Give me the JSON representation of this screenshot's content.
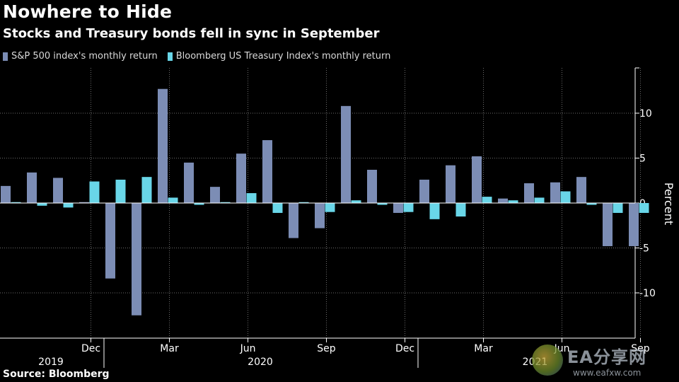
{
  "header": {
    "title": "Nowhere to Hide",
    "subtitle": "Stocks and Treasury bonds fell in sync in September"
  },
  "legend": {
    "sp500": "S&P 500 index's monthly return",
    "treasury": "Bloomberg US Treasury Index's monthly return"
  },
  "colors": {
    "sp500": "#7c8db5",
    "treasury": "#69d6e8",
    "grid": "#6b6b6b",
    "axis": "#ffffff"
  },
  "footer": {
    "source": "Source: Bloomberg"
  },
  "watermark": {
    "main": "EA分享网",
    "sub": "www.eafxw.com"
  },
  "chart_data": {
    "type": "bar",
    "title": "Nowhere to Hide",
    "subtitle": "Stocks and Treasury bonds fell in sync in September",
    "ylabel": "Percent",
    "ylim": [
      -14.5,
      15
    ],
    "y_ticks": [
      10,
      5,
      0,
      -5,
      -10
    ],
    "y_tick_labels": [
      "10",
      "5",
      "0",
      "-5",
      "-10"
    ],
    "grid": true,
    "legend_position": "top-left",
    "categories": [
      "2019-09",
      "2019-10",
      "2019-11",
      "2019-12",
      "2020-01",
      "2020-02",
      "2020-03",
      "2020-04",
      "2020-05",
      "2020-06",
      "2020-07",
      "2020-08",
      "2020-09",
      "2020-10",
      "2020-11",
      "2020-12",
      "2021-01",
      "2021-02",
      "2021-03",
      "2021-04",
      "2021-05",
      "2021-06",
      "2021-07",
      "2021-08",
      "2021-09"
    ],
    "x_month_labels": [
      {
        "index": 3,
        "label": "Dec"
      },
      {
        "index": 6,
        "label": "Mar"
      },
      {
        "index": 9,
        "label": "Jun"
      },
      {
        "index": 12,
        "label": "Sep"
      },
      {
        "index": 15,
        "label": "Dec"
      },
      {
        "index": 18,
        "label": "Mar"
      },
      {
        "index": 21,
        "label": "Jun"
      },
      {
        "index": 24,
        "label": "Sep"
      }
    ],
    "x_year_labels": [
      {
        "from": 0,
        "to": 3,
        "label": "2019"
      },
      {
        "from": 4,
        "to": 15,
        "label": "2020"
      },
      {
        "from": 16,
        "to": 24,
        "label": "2021"
      }
    ],
    "series": [
      {
        "name": "S&P 500 index's monthly return",
        "values": [
          1.9,
          3.4,
          2.8,
          0.1,
          -8.4,
          -12.5,
          12.7,
          4.5,
          1.8,
          5.5,
          7.0,
          -3.9,
          -2.8,
          10.8,
          3.7,
          -1.1,
          2.6,
          4.2,
          5.2,
          0.5,
          2.2,
          2.3,
          2.9,
          -4.8,
          -4.8
        ]
      },
      {
        "name": "Bloomberg US Treasury Index's monthly return",
        "values": [
          0.1,
          -0.3,
          -0.5,
          2.4,
          2.6,
          2.9,
          0.6,
          -0.2,
          0.1,
          1.1,
          -1.1,
          0.1,
          -1.0,
          0.3,
          -0.2,
          -1.0,
          -1.8,
          -1.5,
          0.7,
          0.3,
          0.6,
          1.3,
          -0.2,
          -1.1,
          -1.1
        ]
      }
    ]
  }
}
